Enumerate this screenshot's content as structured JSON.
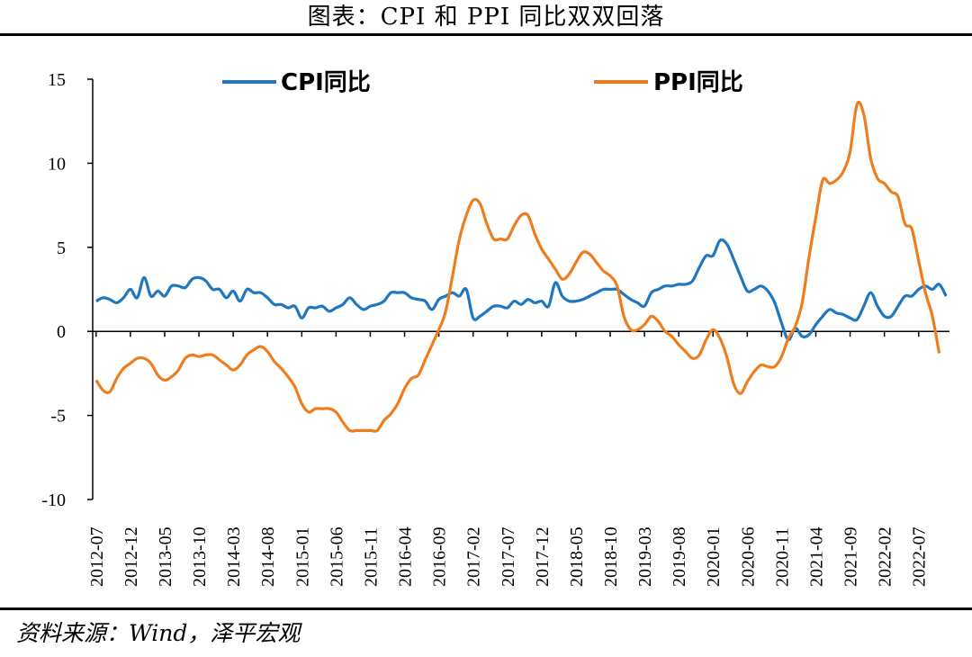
{
  "header": {
    "title": "图表：CPI 和 PPI 同比双双回落"
  },
  "footer": {
    "source": "资料来源：Wind，泽平宏观"
  },
  "chart_data": {
    "type": "line",
    "title": "图表：CPI 和 PPI 同比双双回落",
    "xlabel": "",
    "ylabel": "",
    "ylim": [
      -10,
      15
    ],
    "yticks": [
      15,
      10,
      5,
      0,
      -5,
      -10
    ],
    "grid": false,
    "legend_position": "top",
    "x_tick_labels": [
      "2012-07",
      "2012-12",
      "2013-05",
      "2013-10",
      "2014-03",
      "2014-08",
      "2015-01",
      "2015-06",
      "2015-11",
      "2016-04",
      "2016-09",
      "2017-02",
      "2017-07",
      "2017-12",
      "2018-05",
      "2018-10",
      "2019-03",
      "2019-08",
      "2020-01",
      "2020-06",
      "2020-11",
      "2021-04",
      "2021-09",
      "2022-02",
      "2022-07"
    ],
    "x_start": "2012-07",
    "x_end": "2022-11",
    "series": [
      {
        "name": "CPI同比",
        "color": "#1f77c0",
        "values": [
          1.8,
          2.0,
          1.9,
          1.7,
          2.0,
          2.5,
          2.0,
          3.2,
          2.1,
          2.4,
          2.1,
          2.7,
          2.7,
          2.6,
          3.1,
          3.2,
          3.0,
          2.5,
          2.5,
          2.0,
          2.4,
          1.8,
          2.5,
          2.3,
          2.3,
          2.0,
          1.6,
          1.6,
          1.4,
          1.5,
          0.8,
          1.4,
          1.4,
          1.5,
          1.2,
          1.4,
          1.6,
          2.0,
          1.6,
          1.3,
          1.5,
          1.6,
          1.8,
          2.3,
          2.3,
          2.3,
          2.0,
          1.9,
          1.8,
          1.3,
          1.9,
          2.1,
          2.3,
          2.1,
          2.5,
          0.8,
          0.9,
          1.2,
          1.5,
          1.5,
          1.4,
          1.8,
          1.6,
          1.9,
          1.7,
          1.8,
          1.5,
          2.9,
          2.1,
          1.8,
          1.8,
          1.9,
          2.1,
          2.3,
          2.5,
          2.5,
          2.5,
          2.2,
          1.9,
          1.7,
          1.5,
          2.3,
          2.5,
          2.7,
          2.7,
          2.8,
          2.8,
          3.0,
          3.8,
          4.5,
          4.5,
          5.4,
          5.2,
          4.3,
          3.3,
          2.4,
          2.5,
          2.7,
          2.4,
          1.7,
          0.5,
          -0.5,
          0.2,
          -0.3,
          -0.2,
          0.4,
          0.9,
          1.3,
          1.1,
          1.0,
          0.8,
          0.7,
          1.5,
          2.3,
          1.5,
          0.9,
          0.9,
          1.5,
          2.1,
          2.1,
          2.5,
          2.7,
          2.5,
          2.8,
          2.1
        ]
      },
      {
        "name": "PPI同比",
        "color": "#ee7d1e",
        "values": [
          -2.9,
          -3.5,
          -3.6,
          -2.8,
          -2.2,
          -1.9,
          -1.6,
          -1.6,
          -1.9,
          -2.6,
          -2.9,
          -2.7,
          -2.3,
          -1.6,
          -1.4,
          -1.5,
          -1.4,
          -1.4,
          -1.7,
          -2.0,
          -2.3,
          -2.0,
          -1.4,
          -1.1,
          -0.9,
          -1.2,
          -1.8,
          -2.2,
          -2.7,
          -3.3,
          -4.3,
          -4.8,
          -4.6,
          -4.6,
          -4.6,
          -4.8,
          -5.4,
          -5.9,
          -5.9,
          -5.9,
          -5.9,
          -5.9,
          -5.3,
          -4.9,
          -4.3,
          -3.4,
          -2.8,
          -2.6,
          -1.7,
          -0.8,
          0.1,
          1.2,
          3.3,
          5.5,
          6.9,
          7.8,
          7.6,
          6.4,
          5.5,
          5.5,
          5.5,
          6.3,
          6.9,
          6.9,
          5.8,
          4.9,
          4.3,
          3.7,
          3.1,
          3.4,
          4.1,
          4.7,
          4.6,
          4.1,
          3.6,
          3.3,
          2.7,
          0.9,
          0.1,
          0.1,
          0.4,
          0.9,
          0.6,
          0.0,
          -0.3,
          -0.8,
          -1.2,
          -1.6,
          -1.4,
          -0.5,
          0.1,
          -0.4,
          -1.5,
          -3.1,
          -3.7,
          -3.0,
          -2.4,
          -2.0,
          -2.1,
          -2.1,
          -1.5,
          -0.4,
          0.3,
          1.7,
          4.4,
          6.8,
          9.0,
          8.8,
          9.0,
          9.5,
          10.7,
          13.5,
          12.9,
          10.3,
          9.1,
          8.8,
          8.3,
          8.0,
          6.4,
          6.1,
          4.2,
          2.3,
          0.9,
          -1.3
        ]
      }
    ]
  }
}
